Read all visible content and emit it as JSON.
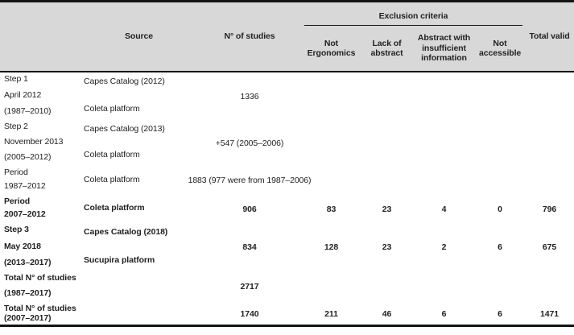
{
  "header": {
    "source": "Source",
    "n_studies": "N° of studies",
    "exclusion_group": "Exclusion criteria",
    "exclusion_columns": [
      "Not Ergonomics",
      "Lack of abstract",
      "Abstract with insufficient information",
      "Not accessible"
    ],
    "total_valid": "Total valid"
  },
  "rows": [
    {
      "label": [
        "Step 1",
        "April 2012",
        "(1987–2010)"
      ],
      "source": [
        "Capes Catalog (2012)",
        "Coleta platform"
      ],
      "n_studies": "1336",
      "not_ergonomics": "",
      "lack_of_abstract": "",
      "abstract_insufficient": "",
      "not_accessible": "",
      "total_valid": ""
    },
    {
      "label": [
        "Step 2",
        "November 2013",
        "(2005–2012)"
      ],
      "source": [
        "Capes Catalog (2013)",
        "Coleta platform"
      ],
      "n_studies": "+547 (2005–2006)",
      "not_ergonomics": "",
      "lack_of_abstract": "",
      "abstract_insufficient": "",
      "not_accessible": "",
      "total_valid": ""
    },
    {
      "label": [
        "Period",
        "1987–2012"
      ],
      "source": [
        "Coleta platform"
      ],
      "n_studies": "1883 (977 were from 1987–2006)",
      "not_ergonomics": "",
      "lack_of_abstract": "",
      "abstract_insufficient": "",
      "not_accessible": "",
      "total_valid": ""
    },
    {
      "label": [
        "Period",
        "2007–2012"
      ],
      "source": [
        "Coleta platform"
      ],
      "n_studies": "906",
      "not_ergonomics": "83",
      "lack_of_abstract": "23",
      "abstract_insufficient": "4",
      "not_accessible": "0",
      "total_valid": "796"
    },
    {
      "label": [
        "Step 3",
        "May 2018",
        "(2013–2017)"
      ],
      "source": [
        "Capes Catalog (2018)",
        "Sucupira platform"
      ],
      "n_studies": "834",
      "not_ergonomics": "128",
      "lack_of_abstract": "23",
      "abstract_insufficient": "2",
      "not_accessible": "6",
      "total_valid": "675"
    },
    {
      "label": [
        "Total N° of studies",
        "(1987–2017)"
      ],
      "source": [],
      "n_studies": "2717",
      "not_ergonomics": "",
      "lack_of_abstract": "",
      "abstract_insufficient": "",
      "not_accessible": "",
      "total_valid": ""
    },
    {
      "label": [
        "Total N° of studies",
        "(2007–2017)"
      ],
      "source": [],
      "n_studies": "1740",
      "not_ergonomics": "211",
      "lack_of_abstract": "46",
      "abstract_insufficient": "6",
      "not_accessible": "6",
      "total_valid": "1471"
    }
  ],
  "colors": {
    "header_background": "#d8d8d8",
    "rule": "#141414",
    "text": "#222222"
  }
}
